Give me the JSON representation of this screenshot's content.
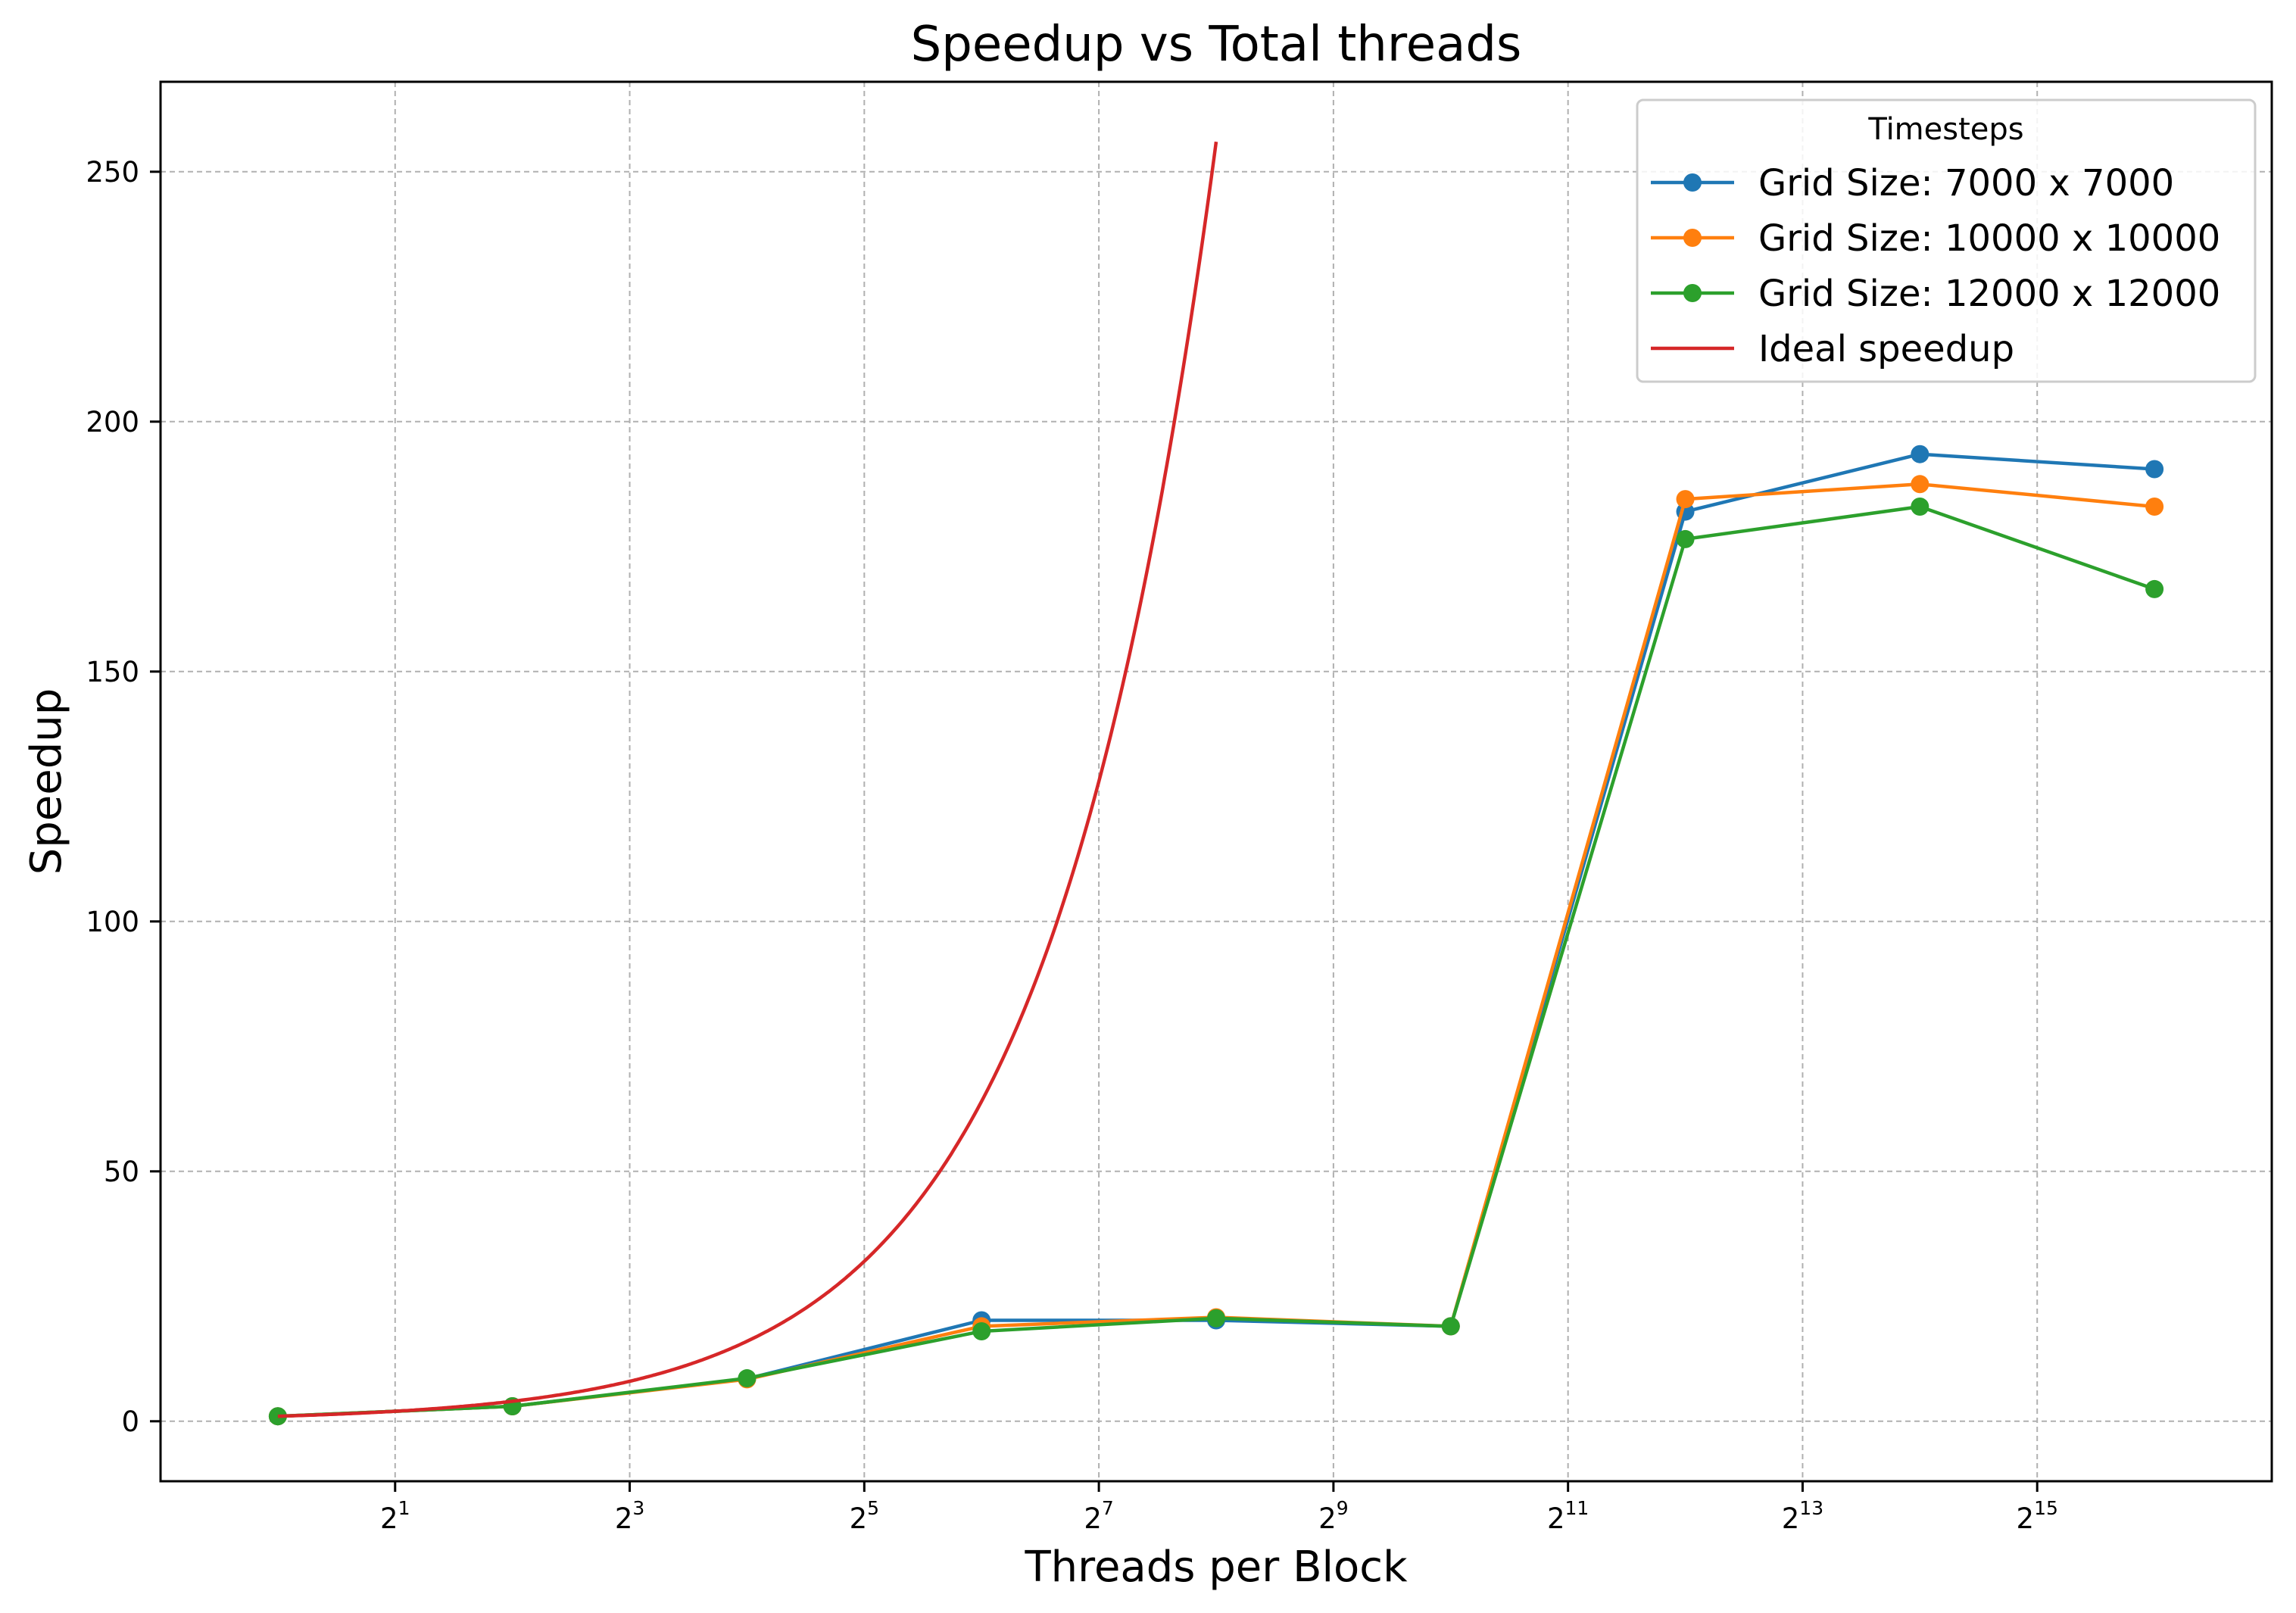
{
  "chart_data": {
    "type": "line",
    "title": "Speedup vs Total threads",
    "xlabel": "Threads per Block",
    "ylabel": "Speedup",
    "x_scale": "log2",
    "xlim": [
      0.5,
      131072
    ],
    "ylim": [
      -12,
      268
    ],
    "grid": true,
    "x_ticks": [
      {
        "value": 2,
        "base": "2",
        "exp": "1"
      },
      {
        "value": 8,
        "base": "2",
        "exp": "3"
      },
      {
        "value": 32,
        "base": "2",
        "exp": "5"
      },
      {
        "value": 128,
        "base": "2",
        "exp": "7"
      },
      {
        "value": 512,
        "base": "2",
        "exp": "9"
      },
      {
        "value": 2048,
        "base": "2",
        "exp": "11"
      },
      {
        "value": 8192,
        "base": "2",
        "exp": "13"
      },
      {
        "value": 32768,
        "base": "2",
        "exp": "15"
      }
    ],
    "y_ticks": [
      {
        "value": 0,
        "label": "0"
      },
      {
        "value": 50,
        "label": "50"
      },
      {
        "value": 100,
        "label": "100"
      },
      {
        "value": 150,
        "label": "150"
      },
      {
        "value": 200,
        "label": "200"
      },
      {
        "value": 250,
        "label": "250"
      }
    ],
    "legend": {
      "title": "Timesteps",
      "placement": "top-right"
    },
    "series": [
      {
        "name": "Grid Size: 7000 x 7000",
        "color": "#1f77b4",
        "marker": "circle",
        "x": [
          1,
          4,
          16,
          64,
          256,
          1024,
          4096,
          16384,
          65536
        ],
        "y": [
          1,
          3,
          8.5,
          20.2,
          20.2,
          19.0,
          182.0,
          193.5,
          190.5
        ]
      },
      {
        "name": "Grid Size: 10000 x 10000",
        "color": "#ff7f0e",
        "marker": "circle",
        "x": [
          1,
          4,
          16,
          64,
          256,
          1024,
          4096,
          16384,
          65536
        ],
        "y": [
          1,
          3,
          8.4,
          19.0,
          20.8,
          19.0,
          184.5,
          187.5,
          183.0
        ]
      },
      {
        "name": "Grid Size: 12000 x 12000",
        "color": "#2ca02c",
        "marker": "circle",
        "x": [
          1,
          4,
          16,
          64,
          256,
          1024,
          4096,
          16384,
          65536
        ],
        "y": [
          1,
          3,
          8.6,
          18.0,
          20.6,
          19.0,
          176.5,
          183.0,
          166.5
        ]
      },
      {
        "name": "Ideal speedup",
        "color": "#d62728",
        "marker": "none",
        "function": "y = x",
        "x_range": [
          1,
          256
        ]
      }
    ]
  }
}
